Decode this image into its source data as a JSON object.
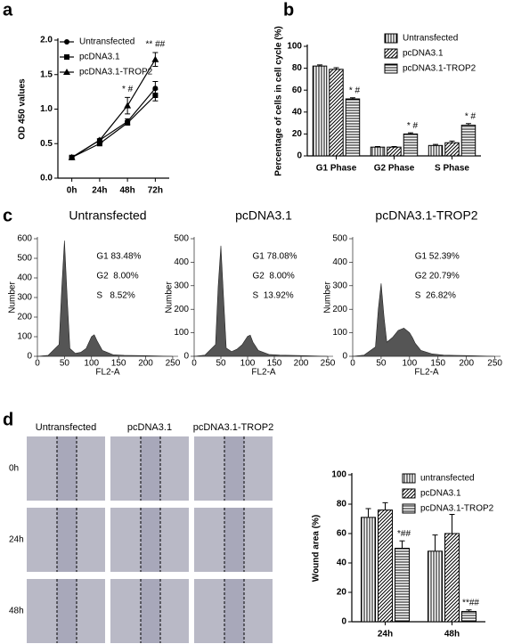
{
  "panels": [
    "a",
    "b",
    "c",
    "d"
  ],
  "wound_images": {
    "columns": [
      "Untransfected",
      "pcDNA3.1",
      "pcDNA3.1-TROP2"
    ],
    "rows": [
      "0h",
      "24h",
      "48h"
    ]
  },
  "chart_data": [
    {
      "type": "line",
      "ylabel": "OD 450 values",
      "categories": [
        "0h",
        "24h",
        "48h",
        "72h"
      ],
      "ylim": [
        0,
        2
      ],
      "yticks": [
        {
          "value": 0,
          "label": "0.0"
        },
        0.5,
        {
          "value": 1,
          "label": "1.0"
        },
        1.5,
        {
          "value": 2,
          "label": "2.0"
        }
      ],
      "annotations": [
        null,
        null,
        "* #",
        "** ##"
      ],
      "legend": "upper-left",
      "series": [
        {
          "name": "Untransfected",
          "marker": "circle",
          "color": "#000000",
          "values": [
            0.3,
            0.55,
            0.82,
            1.3
          ],
          "errors": [
            0.02,
            0.02,
            0.04,
            0.1
          ]
        },
        {
          "name": "pcDNA3.1",
          "marker": "square",
          "color": "#000000",
          "values": [
            0.3,
            0.5,
            0.8,
            1.2
          ],
          "errors": [
            0.02,
            0.02,
            0.03,
            0.08
          ]
        },
        {
          "name": "pcDNA3.1-TROP2",
          "marker": "triangle",
          "color": "#000000",
          "values": [
            0.3,
            0.55,
            1.05,
            1.72
          ],
          "errors": [
            0.02,
            0.02,
            0.12,
            0.1
          ]
        }
      ]
    },
    {
      "type": "bar",
      "ylabel": "Percentage of cells in cell cycle (%)",
      "categories": [
        "G1 Phase",
        "G2 Phase",
        "S Phase"
      ],
      "ylim": [
        0,
        100
      ],
      "yticks": [
        0,
        20,
        40,
        60,
        80,
        100
      ],
      "legend": "upper-right",
      "series": [
        {
          "name": "Untransfected",
          "pattern": "vertical",
          "color": "#000000",
          "values": [
            82,
            8,
            9.5
          ],
          "errors": [
            1,
            0.5,
            1
          ]
        },
        {
          "name": "pcDNA3.1",
          "pattern": "diagonal",
          "color": "#000000",
          "values": [
            79,
            8,
            12
          ],
          "errors": [
            1.5,
            0.5,
            1.5
          ]
        },
        {
          "name": "pcDNA3.1-TROP2",
          "pattern": "horizontal",
          "color": "#000000",
          "values": [
            52,
            20,
            28
          ],
          "errors": [
            1,
            1,
            1.5
          ],
          "annotations": [
            "* #",
            "* #",
            "* #"
          ]
        }
      ]
    },
    {
      "type": "area",
      "title": "Untransfected",
      "xlabel": "FL2-A",
      "ylabel": "Number",
      "color": "#555555",
      "annotations": [
        "G1 83.48%",
        "G2  8.00%",
        "S   8.52%"
      ],
      "xlim": [
        0,
        260
      ],
      "xticks": [
        0,
        50,
        100,
        150,
        200,
        250
      ],
      "ylim": [
        0,
        600
      ],
      "yticks": [
        0,
        100,
        200,
        300,
        400,
        500,
        600
      ],
      "x": [
        0,
        20,
        40,
        45,
        50,
        55,
        60,
        70,
        80,
        90,
        100,
        105,
        110,
        120,
        140,
        160,
        200,
        250
      ],
      "values": [
        0,
        5,
        60,
        350,
        590,
        300,
        40,
        15,
        20,
        40,
        100,
        110,
        80,
        30,
        8,
        5,
        3,
        0
      ]
    },
    {
      "type": "area",
      "title": "pcDNA3.1",
      "xlabel": "FL2-A",
      "ylabel": "Number",
      "color": "#555555",
      "annotations": [
        "G1 78.08%",
        "G2  8.00%",
        "S  13.92%"
      ],
      "xlim": [
        0,
        260
      ],
      "xticks": [
        0,
        50,
        100,
        150,
        200,
        250
      ],
      "ylim": [
        0,
        500
      ],
      "yticks": [
        0,
        100,
        200,
        300,
        400,
        500
      ],
      "x": [
        0,
        20,
        40,
        45,
        50,
        55,
        60,
        70,
        80,
        90,
        100,
        105,
        110,
        120,
        140,
        160,
        200,
        250
      ],
      "values": [
        0,
        5,
        50,
        300,
        470,
        250,
        35,
        20,
        30,
        50,
        85,
        90,
        60,
        25,
        8,
        5,
        3,
        0
      ]
    },
    {
      "type": "area",
      "title": "pcDNA3.1-TROP2",
      "xlabel": "FL2-A",
      "ylabel": "Number",
      "color": "#555555",
      "annotations": [
        "G1 52.39%",
        "G2 20.79%",
        "S  26.82%"
      ],
      "xlim": [
        0,
        260
      ],
      "xticks": [
        0,
        50,
        100,
        150,
        200,
        250
      ],
      "ylim": [
        0,
        500
      ],
      "yticks": [
        0,
        100,
        200,
        300,
        400,
        500
      ],
      "x": [
        0,
        20,
        40,
        45,
        50,
        55,
        60,
        70,
        80,
        90,
        100,
        105,
        110,
        120,
        140,
        160,
        200,
        250
      ],
      "values": [
        0,
        5,
        40,
        200,
        310,
        170,
        60,
        80,
        110,
        120,
        100,
        80,
        55,
        25,
        10,
        5,
        3,
        0
      ]
    },
    {
      "type": "bar",
      "ylabel": "Wound area (%)",
      "categories": [
        "24h",
        "48h"
      ],
      "ylim": [
        0,
        100
      ],
      "yticks": [
        0,
        20,
        40,
        60,
        80,
        100
      ],
      "legend": "upper-right",
      "series": [
        {
          "name": "untransfected",
          "pattern": "vertical",
          "color": "#000000",
          "values": [
            71,
            48
          ],
          "errors": [
            6,
            11
          ]
        },
        {
          "name": "pcDNA3.1",
          "pattern": "diagonal",
          "color": "#000000",
          "values": [
            76,
            60
          ],
          "errors": [
            5,
            13
          ]
        },
        {
          "name": "pcDNA3.1-TROP2",
          "pattern": "horizontal",
          "color": "#000000",
          "values": [
            50,
            7
          ],
          "errors": [
            5,
            1
          ],
          "annotations": [
            "*##",
            "**##"
          ]
        }
      ]
    }
  ]
}
